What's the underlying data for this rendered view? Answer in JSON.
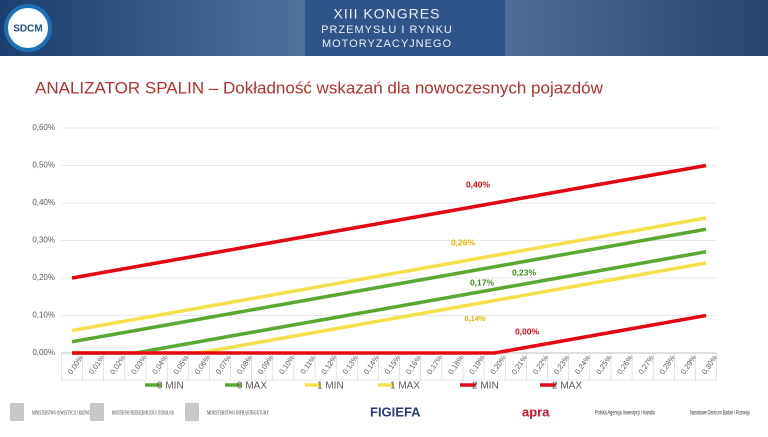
{
  "header": {
    "logo": "SDCM",
    "title_lines": [
      "XIII KONGRES",
      "PRZEMYSŁU I RYNKU",
      "MOTORYZACYJNEGO"
    ]
  },
  "footer": {
    "logos": [
      "MINISTERSTWO INWESTYCJI I ROZWOJU",
      "MINISTERSTWO PRZEDSIĘBIORCZOŚCI I TECHNOLOGII",
      "MINISTERSTWO INFRASTRUKTURY",
      "FIGIEFA",
      "apra",
      "Polska Agencja Inwestycji i Handlu",
      "Narodowe Centrum Badań i Rozwoju"
    ]
  },
  "chart_data": {
    "type": "line",
    "title": "ANALIZATOR SPALIN – Dokładność wskazań dla nowoczesnych pojazdów",
    "categories": [
      "0,00%",
      "0,01%",
      "0,02%",
      "0,03%",
      "0,04%",
      "0,05%",
      "0,06%",
      "0,07%",
      "0,08%",
      "0,09%",
      "0,10%",
      "0,11%",
      "0,12%",
      "0,13%",
      "0,14%",
      "0,15%",
      "0,16%",
      "0,17%",
      "0,18%",
      "0,19%",
      "0,20%",
      "0,21%",
      "0,22%",
      "0,23%",
      "0,24%",
      "0,25%",
      "0,26%",
      "0,27%",
      "0,28%",
      "0,29%",
      "0,30%"
    ],
    "series": [
      {
        "name": "0 MIN",
        "color": "#5aa832",
        "values": [
          0,
          0,
          0,
          0,
          0.01,
          0.02,
          0.03,
          0.04,
          0.05,
          0.06,
          0.07,
          0.08,
          0.09,
          0.1,
          0.11,
          0.12,
          0.13,
          0.14,
          0.15,
          0.16,
          0.17,
          0.18,
          0.19,
          0.2,
          0.21,
          0.22,
          0.23,
          0.24,
          0.25,
          0.26,
          0.27
        ]
      },
      {
        "name": "0 MAX",
        "color": "#5aa832",
        "values": [
          0.03,
          0.04,
          0.05,
          0.06,
          0.07,
          0.08,
          0.09,
          0.1,
          0.11,
          0.12,
          0.13,
          0.14,
          0.15,
          0.16,
          0.17,
          0.18,
          0.19,
          0.2,
          0.21,
          0.22,
          0.23,
          0.24,
          0.25,
          0.26,
          0.27,
          0.28,
          0.29,
          0.3,
          0.31,
          0.32,
          0.33
        ]
      },
      {
        "name": "1 MIN",
        "color": "#f4e04d",
        "values": [
          0,
          0,
          0,
          0,
          0,
          0,
          0,
          0.01,
          0.02,
          0.03,
          0.04,
          0.05,
          0.06,
          0.07,
          0.08,
          0.09,
          0.1,
          0.11,
          0.12,
          0.13,
          0.14,
          0.15,
          0.16,
          0.17,
          0.18,
          0.19,
          0.2,
          0.21,
          0.22,
          0.23,
          0.24
        ]
      },
      {
        "name": "1 MAX",
        "color": "#f4e04d",
        "values": [
          0.06,
          0.07,
          0.08,
          0.09,
          0.1,
          0.11,
          0.12,
          0.13,
          0.14,
          0.15,
          0.16,
          0.17,
          0.18,
          0.19,
          0.2,
          0.21,
          0.22,
          0.23,
          0.24,
          0.25,
          0.26,
          0.27,
          0.28,
          0.29,
          0.3,
          0.31,
          0.32,
          0.33,
          0.34,
          0.35,
          0.36
        ]
      },
      {
        "name": "2 MIN",
        "color": "#e30613",
        "values": [
          0,
          0,
          0,
          0,
          0,
          0,
          0,
          0,
          0,
          0,
          0,
          0,
          0,
          0,
          0,
          0,
          0,
          0,
          0,
          0,
          0,
          0.01,
          0.02,
          0.03,
          0.04,
          0.05,
          0.06,
          0.07,
          0.08,
          0.09,
          0.1
        ]
      },
      {
        "name": "2 MAX",
        "color": "#e30613",
        "values": [
          0.2,
          0.21,
          0.22,
          0.23,
          0.24,
          0.25,
          0.26,
          0.27,
          0.28,
          0.29,
          0.3,
          0.31,
          0.32,
          0.33,
          0.34,
          0.35,
          0.36,
          0.37,
          0.38,
          0.39,
          0.4,
          0.41,
          0.42,
          0.43,
          0.44,
          0.45,
          0.46,
          0.47,
          0.48,
          0.49,
          0.5
        ]
      }
    ],
    "ylim": [
      0,
      0.6
    ],
    "yticks": [
      {
        "value": 0,
        "label": "0,00%"
      },
      {
        "value": 0.1,
        "label": "0,10%"
      },
      {
        "value": 0.2,
        "label": "0,20%"
      },
      {
        "value": 0.3,
        "label": "0,30%"
      },
      {
        "value": 0.4,
        "label": "0,40%"
      },
      {
        "value": 0.5,
        "label": "0,50%"
      },
      {
        "value": 0.6,
        "label": "0,60%"
      }
    ],
    "annotations": [
      {
        "text": "0,40%",
        "color": "#e30613"
      },
      {
        "text": "0,26%",
        "color": "#e3b400"
      },
      {
        "text": "0,23%",
        "color": "#3d8a1e"
      },
      {
        "text": "0,17%",
        "color": "#3d8a1e"
      },
      {
        "text": "0,14%",
        "color": "#e3b400"
      },
      {
        "text": "0,00%",
        "color": "#e30613"
      }
    ]
  }
}
